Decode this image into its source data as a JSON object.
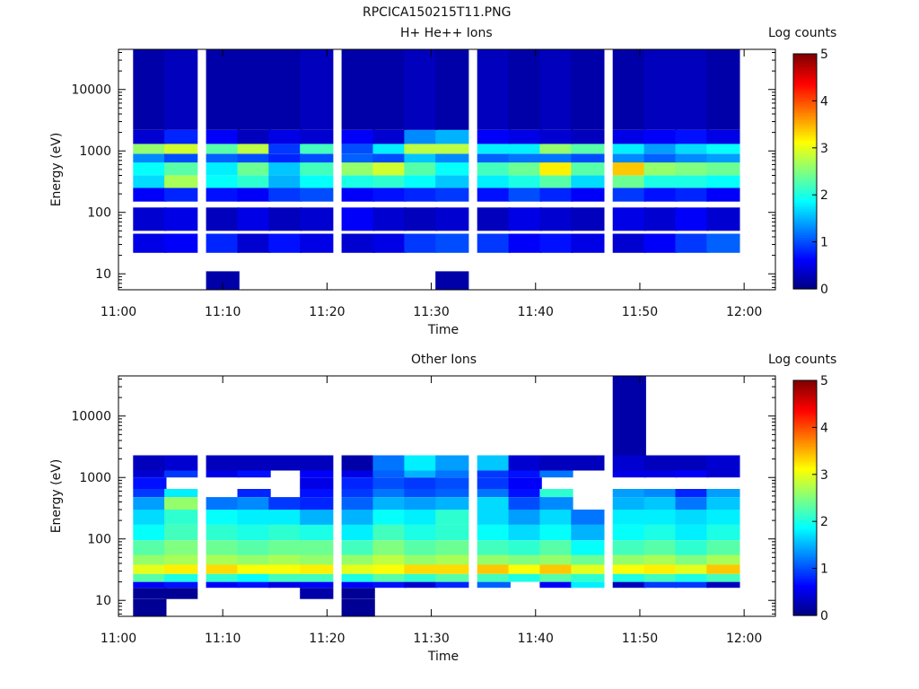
{
  "figure": {
    "title": "RPCICA150215T11.PNG"
  },
  "chart_data": [
    {
      "type": "heatmap",
      "title": "H+ He++ Ions",
      "xlabel": "Time",
      "ylabel": "Energy (eV)",
      "x_axis": {
        "range": [
          "11:00",
          "12:03"
        ],
        "ticks": [
          "11:00",
          "11:10",
          "11:20",
          "11:30",
          "11:40",
          "11:50",
          "12:00"
        ]
      },
      "y_axis": {
        "scale": "log",
        "range": [
          5.5,
          45000
        ],
        "ticks": [
          "10",
          "100",
          "1000",
          "10000"
        ]
      },
      "colorbar": {
        "label": "Log counts",
        "range": [
          0,
          5
        ],
        "ticks": [
          "0",
          "1",
          "2",
          "3",
          "4",
          "5"
        ]
      },
      "time_bins": [
        "11:03",
        "11:06",
        "11:10",
        "11:13",
        "11:16",
        "11:19",
        "11:23",
        "11:26",
        "11:29",
        "11:32",
        "11:36",
        "11:39",
        "11:42",
        "11:45",
        "11:49",
        "11:52",
        "11:55",
        "11:58"
      ],
      "bands": [
        {
          "energy_range": [
            5.5,
            11
          ],
          "values": [
            null,
            null,
            0.2,
            null,
            null,
            null,
            null,
            null,
            null,
            0.2,
            null,
            null,
            null,
            null,
            null,
            null,
            null,
            null
          ]
        },
        {
          "energy_range": [
            22,
            45
          ],
          "values": [
            0.5,
            0.6,
            0.8,
            0.4,
            0.7,
            0.5,
            0.4,
            0.5,
            0.9,
            1.0,
            0.9,
            0.6,
            0.7,
            0.5,
            0.4,
            0.6,
            0.9,
            1.1
          ]
        },
        {
          "energy_range": [
            50,
            120
          ],
          "values": [
            0.4,
            0.5,
            0.3,
            0.5,
            0.3,
            0.4,
            0.6,
            0.4,
            0.3,
            0.4,
            0.3,
            0.5,
            0.4,
            0.3,
            0.5,
            0.4,
            0.6,
            0.4
          ]
        },
        {
          "energy_range": [
            150,
            250
          ],
          "values": [
            0.6,
            0.8,
            0.7,
            0.6,
            0.9,
            1.0,
            0.6,
            0.7,
            0.8,
            0.9,
            0.7,
            1.0,
            0.8,
            0.6,
            0.9,
            0.7,
            0.8,
            0.6
          ]
        },
        {
          "energy_range": [
            250,
            400
          ],
          "values": [
            1.7,
            2.7,
            1.9,
            2.1,
            1.5,
            1.9,
            2.0,
            2.1,
            1.9,
            1.6,
            1.8,
            2.0,
            2.3,
            1.7,
            2.4,
            2.0,
            2.0,
            1.9
          ]
        },
        {
          "energy_range": [
            400,
            650
          ],
          "values": [
            1.9,
            2.3,
            1.8,
            2.4,
            1.6,
            2.2,
            2.6,
            2.9,
            2.3,
            1.9,
            2.2,
            2.4,
            3.2,
            2.3,
            3.4,
            2.6,
            2.5,
            2.4
          ]
        },
        {
          "energy_range": [
            650,
            900
          ],
          "values": [
            1.3,
            1.0,
            1.1,
            1.0,
            0.8,
            1.0,
            1.1,
            1.0,
            1.6,
            1.3,
            1.1,
            1.2,
            1.2,
            1.0,
            1.3,
            1.1,
            1.3,
            1.4
          ]
        },
        {
          "energy_range": [
            900,
            1300
          ],
          "values": [
            2.6,
            2.9,
            2.3,
            2.8,
            0.9,
            2.2,
            1.0,
            1.8,
            2.8,
            2.8,
            1.8,
            1.8,
            2.6,
            2.3,
            1.8,
            1.4,
            1.7,
            1.9
          ]
        },
        {
          "energy_range": [
            1300,
            2200
          ],
          "values": [
            0.4,
            0.8,
            0.6,
            0.3,
            0.5,
            0.4,
            0.6,
            0.4,
            1.3,
            1.5,
            0.6,
            0.5,
            0.4,
            0.3,
            0.5,
            0.6,
            0.7,
            0.5
          ]
        },
        {
          "energy_range": [
            2200,
            45000
          ],
          "values": [
            0.2,
            0.3,
            0.2,
            0.2,
            0.2,
            0.3,
            0.2,
            0.2,
            0.3,
            0.2,
            0.3,
            0.2,
            0.3,
            0.2,
            0.2,
            0.3,
            0.3,
            0.2
          ]
        }
      ]
    },
    {
      "type": "heatmap",
      "title": "Other Ions",
      "xlabel": "Time",
      "ylabel": "Energy (eV)",
      "x_axis": {
        "range": [
          "11:00",
          "12:03"
        ],
        "ticks": [
          "11:00",
          "11:10",
          "11:20",
          "11:30",
          "11:40",
          "11:50",
          "12:00"
        ]
      },
      "y_axis": {
        "scale": "log",
        "range": [
          5.5,
          45000
        ],
        "ticks": [
          "10",
          "100",
          "1000",
          "10000"
        ]
      },
      "colorbar": {
        "label": "Log counts",
        "range": [
          0,
          5
        ],
        "ticks": [
          "0",
          "1",
          "2",
          "3",
          "4",
          "5"
        ]
      },
      "time_bins": [
        "11:03",
        "11:06",
        "11:10",
        "11:13",
        "11:16",
        "11:19",
        "11:23",
        "11:26",
        "11:29",
        "11:32",
        "11:36",
        "11:39",
        "11:42",
        "11:45",
        "11:49",
        "11:52",
        "11:55",
        "11:58"
      ],
      "bands": [
        {
          "energy_range": [
            5.5,
            10.5
          ],
          "values": [
            0.1,
            null,
            null,
            null,
            null,
            null,
            0.1,
            null,
            null,
            null,
            null,
            null,
            null,
            null,
            null,
            null,
            null,
            null
          ]
        },
        {
          "energy_range": [
            10.5,
            16
          ],
          "values": [
            0.1,
            0.1,
            null,
            null,
            null,
            0.2,
            0.1,
            null,
            null,
            null,
            null,
            null,
            null,
            null,
            null,
            null,
            null,
            null
          ]
        },
        {
          "energy_range": [
            16,
            20
          ],
          "values": [
            0.6,
            0.7,
            0.6,
            0.7,
            0.5,
            0.6,
            0.6,
            0.7,
            0.4,
            0.8,
            1.1,
            null,
            0.6,
            1.8,
            0.3,
            0.9,
            0.9,
            0.3
          ]
        },
        {
          "energy_range": [
            20,
            27
          ],
          "values": [
            2.3,
            2.0,
            2.1,
            1.9,
            2.2,
            2.2,
            2.0,
            2.3,
            2.1,
            2.3,
            2.2,
            2.0,
            2.3,
            2.1,
            2.0,
            2.2,
            2.0,
            2.2
          ]
        },
        {
          "energy_range": [
            27,
            38
          ],
          "values": [
            3.0,
            3.2,
            3.3,
            3.1,
            3.1,
            3.2,
            3.0,
            3.1,
            3.3,
            3.3,
            3.4,
            3.1,
            3.4,
            3.0,
            3.1,
            3.2,
            3.0,
            3.4
          ]
        },
        {
          "energy_range": [
            38,
            55
          ],
          "values": [
            2.6,
            2.7,
            2.7,
            2.6,
            2.7,
            2.6,
            2.6,
            2.8,
            2.6,
            2.7,
            2.6,
            2.5,
            2.6,
            2.4,
            2.6,
            2.7,
            2.5,
            2.7
          ]
        },
        {
          "energy_range": [
            55,
            95
          ],
          "values": [
            2.3,
            2.5,
            2.4,
            2.3,
            2.4,
            2.4,
            2.2,
            2.5,
            2.3,
            2.4,
            2.2,
            2.1,
            2.3,
            1.9,
            2.2,
            2.3,
            2.1,
            2.3
          ]
        },
        {
          "energy_range": [
            95,
            170
          ],
          "values": [
            1.9,
            2.2,
            2.1,
            2.0,
            2.1,
            2.0,
            1.8,
            2.2,
            2.0,
            2.1,
            1.9,
            1.7,
            1.9,
            1.5,
            1.9,
            2.0,
            1.8,
            2.0
          ]
        },
        {
          "energy_range": [
            170,
            300
          ],
          "values": [
            1.7,
            2.1,
            1.9,
            1.8,
            1.8,
            1.5,
            1.5,
            1.9,
            1.8,
            2.1,
            1.7,
            1.4,
            1.7,
            1.2,
            1.8,
            1.8,
            1.7,
            1.8
          ]
        },
        {
          "energy_range": [
            300,
            480
          ],
          "values": [
            1.4,
            2.6,
            1.2,
            1.3,
            0.9,
            0.8,
            1.1,
            1.5,
            1.4,
            1.5,
            1.7,
            1.0,
            1.3,
            null,
            1.5,
            1.6,
            1.2,
            1.6
          ]
        },
        {
          "energy_range": [
            480,
            650
          ],
          "values": [
            0.9,
            1.8,
            null,
            0.8,
            null,
            0.7,
            0.9,
            1.2,
            1.0,
            1.1,
            1.2,
            0.7,
            2.1,
            null,
            1.4,
            1.3,
            0.8,
            1.4
          ]
        },
        {
          "energy_range": [
            650,
            1000
          ],
          "values": [
            0.7,
            null,
            null,
            null,
            null,
            0.5,
            0.8,
            1.0,
            0.9,
            1.0,
            0.9,
            0.6,
            null,
            null,
            null,
            null,
            null,
            null
          ]
        },
        {
          "energy_range": [
            1000,
            1300
          ],
          "values": [
            0.4,
            0.9,
            0.5,
            0.7,
            null,
            0.6,
            0.5,
            1.1,
            1.5,
            1.2,
            0.9,
            0.7,
            1.2,
            null,
            0.5,
            0.5,
            0.6,
            0.4
          ]
        },
        {
          "energy_range": [
            1300,
            2300
          ],
          "values": [
            0.3,
            0.4,
            0.3,
            0.3,
            0.3,
            0.3,
            0.2,
            1.2,
            1.8,
            1.4,
            1.6,
            0.4,
            0.3,
            0.3,
            0.4,
            0.3,
            0.3,
            0.4
          ]
        },
        {
          "energy_range": [
            2300,
            45000
          ],
          "values": [
            null,
            null,
            null,
            null,
            null,
            null,
            null,
            null,
            null,
            null,
            null,
            null,
            null,
            null,
            0.2,
            null,
            null,
            null
          ]
        }
      ]
    }
  ]
}
